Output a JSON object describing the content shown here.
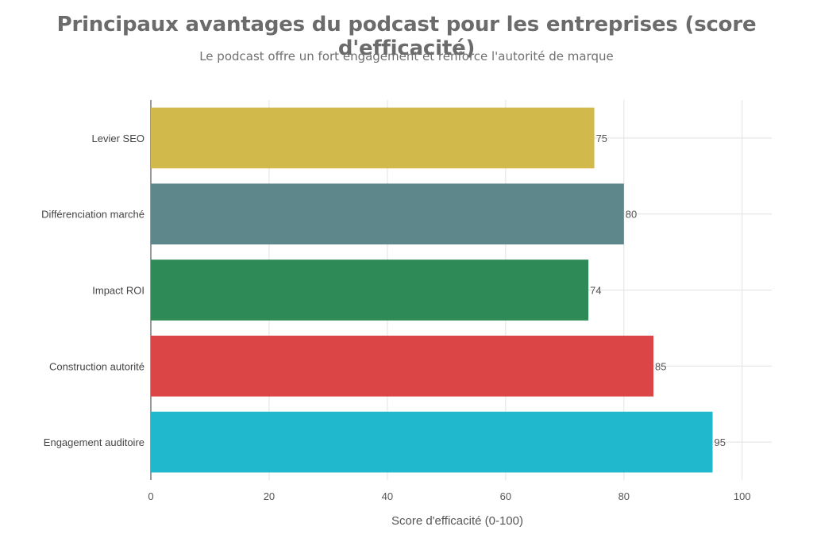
{
  "chart_data": {
    "type": "bar",
    "orientation": "horizontal",
    "title": "Principaux avantages du podcast pour les entreprises (score d'efficacité)",
    "subtitle": "Le podcast offre un fort engagement et renforce l'autorité de marque",
    "xlabel": "Score d'efficacité (0-100)",
    "ylabel": "",
    "xlim": [
      0,
      105
    ],
    "xticks": [
      0,
      20,
      40,
      60,
      80,
      100
    ],
    "categories": [
      "Levier SEO",
      "Différenciation marché",
      "Impact ROI",
      "Construction autorité",
      "Engagement auditoire"
    ],
    "values": [
      75,
      80,
      74,
      85,
      95
    ],
    "colors": [
      "#D2B94B",
      "#5D878B",
      "#2E8B57",
      "#DB4545",
      "#1FB8CD"
    ],
    "grid": true,
    "legend": "none"
  }
}
